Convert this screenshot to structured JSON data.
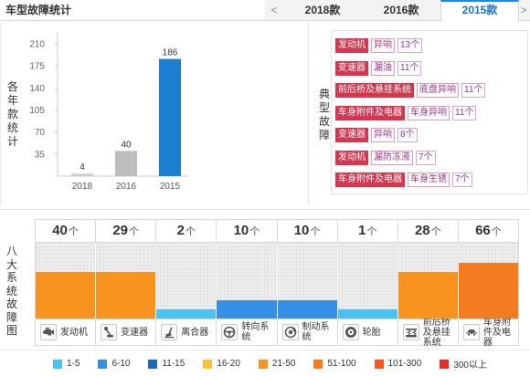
{
  "header": {
    "title": "车型故障统计",
    "prev": "<",
    "next": ">",
    "tabs": [
      {
        "label": "2018款",
        "active": false
      },
      {
        "label": "2016款",
        "active": false
      },
      {
        "label": "2015款",
        "active": true
      }
    ]
  },
  "year_panel": {
    "side_label": "各年款统计"
  },
  "typical_faults": {
    "side_label": "典型故障",
    "items": [
      {
        "system": "发动机",
        "fault": "异响",
        "count": "13个"
      },
      {
        "system": "变速器",
        "fault": "漏油",
        "count": "11个"
      },
      {
        "system": "前后桥及悬挂系统",
        "fault": "底盘异响",
        "count": "11个"
      },
      {
        "system": "车身附件及电器",
        "fault": "车身异响",
        "count": "11个"
      },
      {
        "system": "变速器",
        "fault": "异响",
        "count": "8个"
      },
      {
        "system": "发动机",
        "fault": "漏防冻液",
        "count": "7个"
      },
      {
        "system": "车身附件及电器",
        "fault": "车身生锈",
        "count": "7个"
      }
    ]
  },
  "systems_panel": {
    "side_label": "八大系统故障图",
    "unit": "个",
    "icons": [
      "engine-icon",
      "gearbox-icon",
      "clutch-icon",
      "steering-wheel-icon",
      "brake-icon",
      "tire-icon",
      "suspension-icon",
      "car-body-icon"
    ]
  },
  "chart_data": [
    {
      "type": "bar",
      "categories": [
        "2018",
        "2016",
        "2015"
      ],
      "values": [
        4,
        40,
        186
      ],
      "yticks": [
        35,
        70,
        105,
        140,
        175,
        210
      ],
      "ylim": [
        0,
        210
      ],
      "bar_colors": [
        "#cfcfcf",
        "#bdbdbd",
        "#1d7fd1"
      ],
      "grid": false
    },
    {
      "type": "bar",
      "categories": [
        "发动机",
        "变速器",
        "离合器",
        "转向系统",
        "制动系统",
        "轮胎",
        "前后桥及悬挂系统",
        "车身附件及电器"
      ],
      "values": [
        40,
        29,
        2,
        10,
        10,
        1,
        28,
        66
      ],
      "legend": [
        {
          "label": "1-5",
          "color": "#48c2f3"
        },
        {
          "label": "6-10",
          "color": "#358fe6"
        },
        {
          "label": "11-15",
          "color": "#1a6db5"
        },
        {
          "label": "16-20",
          "color": "#f7c33a"
        },
        {
          "label": "21-50",
          "color": "#f7931e"
        },
        {
          "label": "51-100",
          "color": "#f57b20"
        },
        {
          "label": "101-300",
          "color": "#f25822"
        },
        {
          "label": "300以上",
          "color": "#e42d27"
        }
      ],
      "legend_position": "bottom",
      "grid": true
    }
  ]
}
